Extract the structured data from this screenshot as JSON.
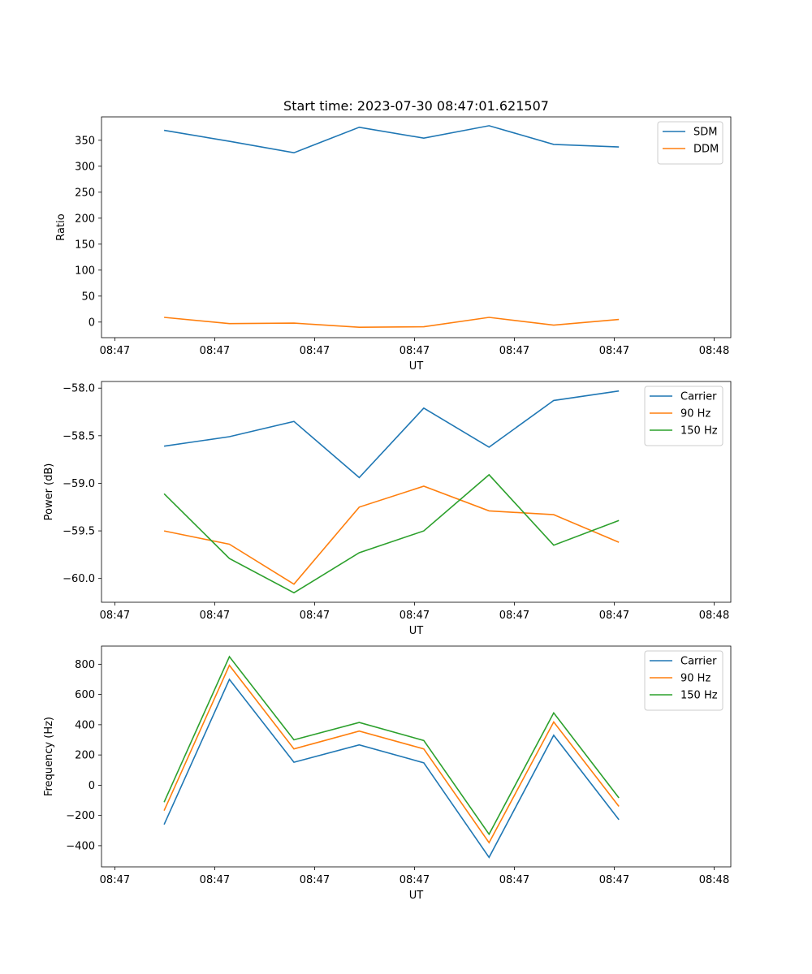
{
  "chart_data": [
    {
      "type": "line",
      "title": "Start time: 2023-07-30 08:47:01.621507",
      "xlabel": "UT",
      "ylabel": "Ratio",
      "legend_position": "top-right",
      "xlim": [
        0,
        9.45
      ],
      "x_ticks": [
        0.2,
        1.7,
        3.2,
        4.7,
        6.2,
        7.7,
        9.2
      ],
      "x_tick_labels": [
        "08:47",
        "08:47",
        "08:47",
        "08:47",
        "08:47",
        "08:47",
        "08:48"
      ],
      "ylim": [
        -30,
        395
      ],
      "y_ticks": [
        0,
        50,
        100,
        150,
        200,
        250,
        300,
        350
      ],
      "y_tick_labels": [
        "0",
        "50",
        "100",
        "150",
        "200",
        "250",
        "300",
        "350"
      ],
      "x": [
        0.94,
        1.92,
        2.89,
        3.87,
        4.84,
        5.82,
        6.79,
        7.77
      ],
      "series": [
        {
          "name": "SDM",
          "color": "#1f77b4",
          "values": [
            369,
            348,
            326,
            375,
            354,
            378,
            342,
            337
          ]
        },
        {
          "name": "DDM",
          "color": "#ff7f0e",
          "values": [
            9,
            -3,
            -2,
            -10,
            -9,
            9,
            -6,
            5
          ]
        }
      ]
    },
    {
      "type": "line",
      "title": "",
      "xlabel": "UT",
      "ylabel": "Power (dB)",
      "legend_position": "top-right",
      "xlim": [
        0,
        9.45
      ],
      "x_ticks": [
        0.2,
        1.7,
        3.2,
        4.7,
        6.2,
        7.7,
        9.2
      ],
      "x_tick_labels": [
        "08:47",
        "08:47",
        "08:47",
        "08:47",
        "08:47",
        "08:47",
        "08:48"
      ],
      "ylim": [
        -60.25,
        -57.93
      ],
      "y_ticks": [
        -60.0,
        -59.5,
        -59.0,
        -58.5,
        -58.0
      ],
      "y_tick_labels": [
        "−60.0",
        "−59.5",
        "−59.0",
        "−58.5",
        "−58.0"
      ],
      "x": [
        0.94,
        1.92,
        2.89,
        3.87,
        4.84,
        5.82,
        6.79,
        7.77
      ],
      "series": [
        {
          "name": "Carrier",
          "color": "#1f77b4",
          "values": [
            -58.61,
            -58.51,
            -58.35,
            -58.94,
            -58.21,
            -58.62,
            -58.13,
            -58.03
          ]
        },
        {
          "name": "90 Hz",
          "color": "#ff7f0e",
          "values": [
            -59.5,
            -59.64,
            -60.06,
            -59.25,
            -59.03,
            -59.29,
            -59.33,
            -59.62
          ]
        },
        {
          "name": "150 Hz",
          "color": "#2ca02c",
          "values": [
            -59.11,
            -59.79,
            -60.15,
            -59.73,
            -59.5,
            -58.91,
            -59.65,
            -59.39
          ]
        }
      ]
    },
    {
      "type": "line",
      "title": "",
      "xlabel": "UT",
      "ylabel": "Frequency (Hz)",
      "legend_position": "top-right",
      "xlim": [
        0,
        9.45
      ],
      "x_ticks": [
        0.2,
        1.7,
        3.2,
        4.7,
        6.2,
        7.7,
        9.2
      ],
      "x_tick_labels": [
        "08:47",
        "08:47",
        "08:47",
        "08:47",
        "08:47",
        "08:47",
        "08:48"
      ],
      "ylim": [
        -540,
        920
      ],
      "y_ticks": [
        -400,
        -200,
        0,
        200,
        400,
        600,
        800
      ],
      "y_tick_labels": [
        "−400",
        "−200",
        "0",
        "200",
        "400",
        "600",
        "800"
      ],
      "x": [
        0.94,
        1.92,
        2.89,
        3.87,
        4.84,
        5.82,
        6.79,
        7.77
      ],
      "series": [
        {
          "name": "Carrier",
          "color": "#1f77b4",
          "values": [
            -260,
            700,
            152,
            267,
            148,
            -477,
            330,
            -228
          ]
        },
        {
          "name": "90 Hz",
          "color": "#ff7f0e",
          "values": [
            -168,
            793,
            240,
            358,
            240,
            -380,
            418,
            -140
          ]
        },
        {
          "name": "150 Hz",
          "color": "#2ca02c",
          "values": [
            -112,
            850,
            300,
            415,
            296,
            -324,
            478,
            -84
          ]
        }
      ]
    }
  ]
}
